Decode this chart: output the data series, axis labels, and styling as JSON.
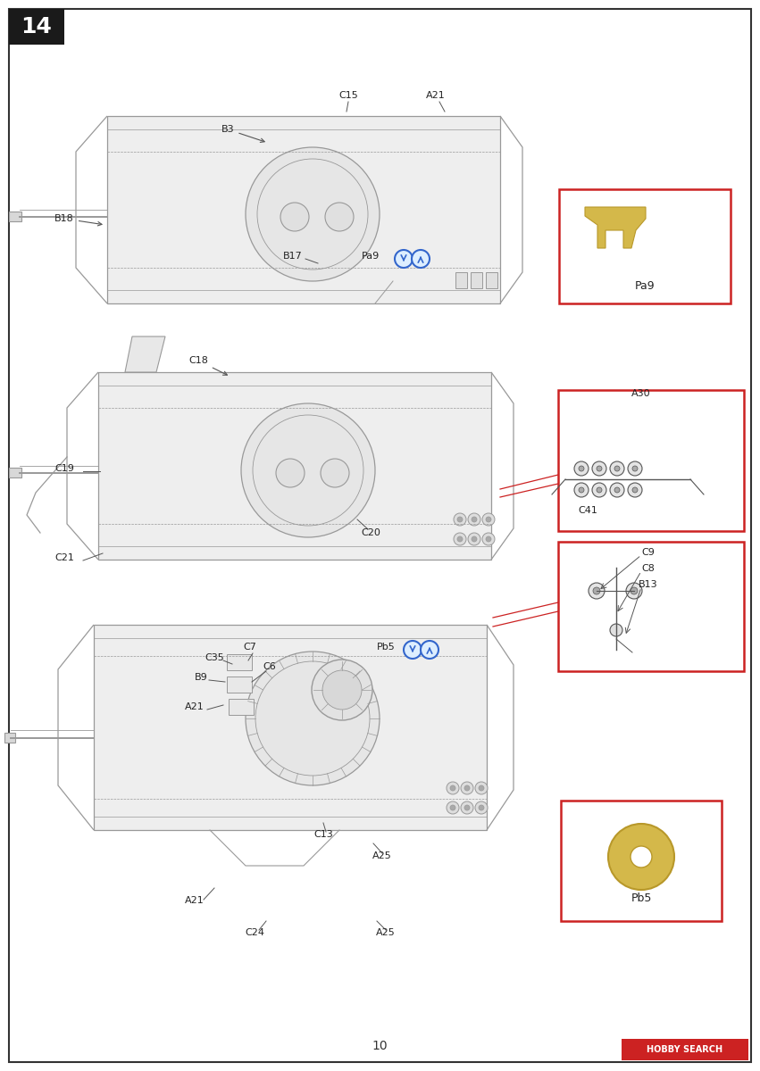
{
  "page_number": "14",
  "footer_page": "10",
  "bg_color": "#ffffff",
  "border_color": "#333333",
  "page_label_bg": "#1a1a1a",
  "page_label_color": "#ffffff",
  "red_box_color": "#cc2222",
  "blue_circle_color": "#3366cc",
  "blue_circle_fill": "#ddeeff",
  "line_color": "#999999",
  "dark_line_color": "#555555",
  "hull_fill": "#eeeeee",
  "part_yellow": "#d4b84a",
  "part_yellow_dark": "#b8982a",
  "text_color": "#222222",
  "hobby_search_bg": "#cc2222",
  "hobby_search_text": "HOBBY SEARCH"
}
